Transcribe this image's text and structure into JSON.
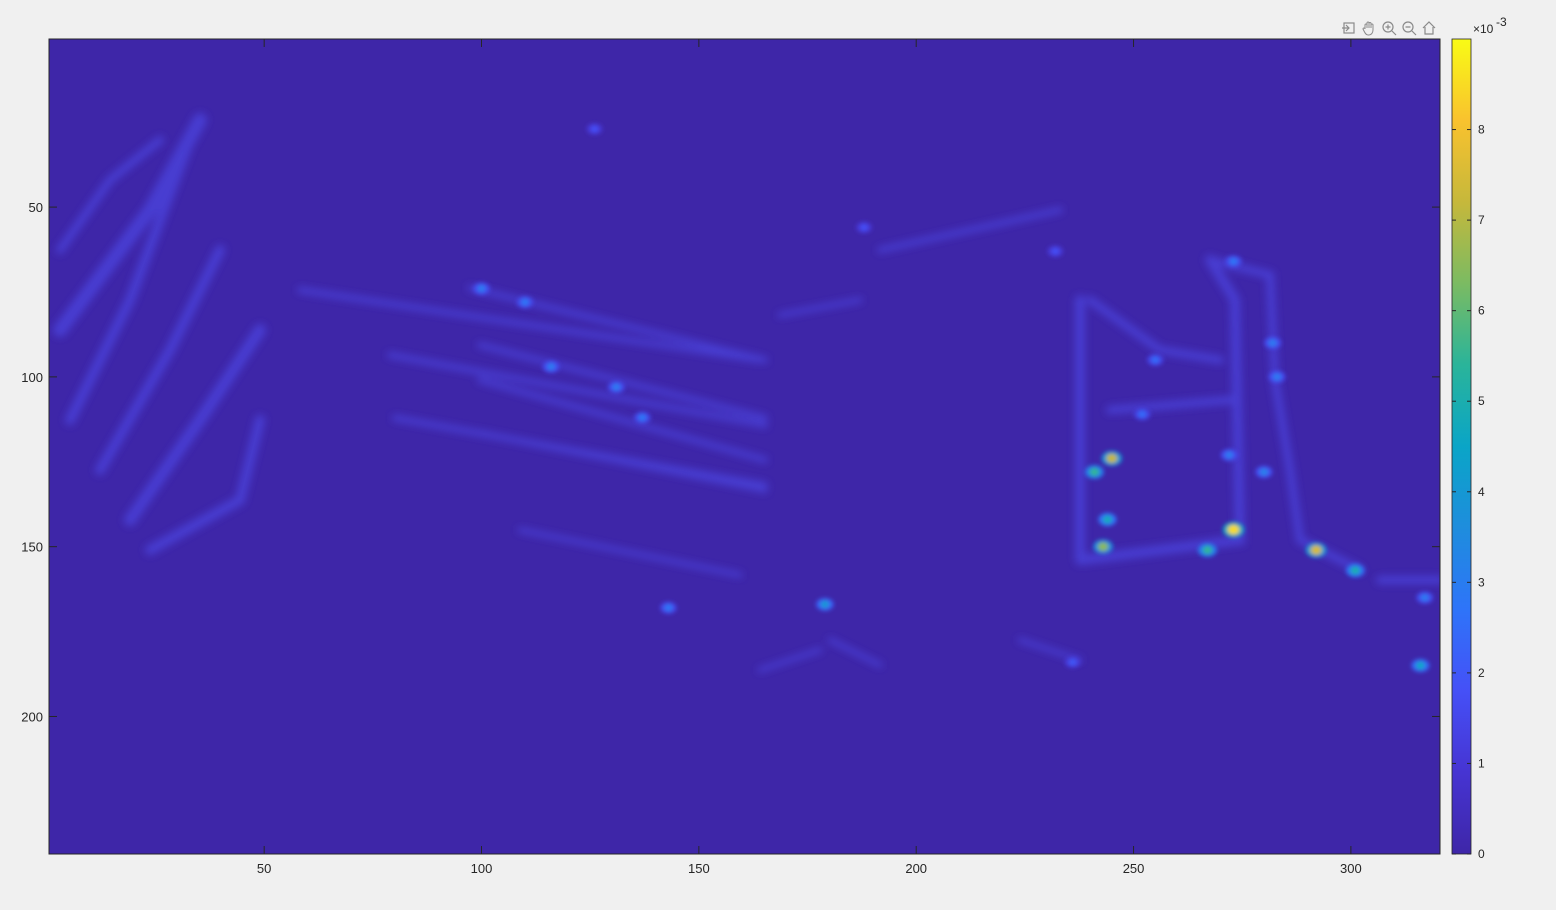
{
  "toolbar": {
    "items": [
      {
        "name": "export-icon"
      },
      {
        "name": "pan-hand-icon"
      },
      {
        "name": "zoom-in-icon"
      },
      {
        "name": "zoom-out-icon"
      },
      {
        "name": "home-icon"
      }
    ]
  },
  "colors": {
    "background": "#f0f0f0",
    "axes_bg": "#3e26a8",
    "axis_line": "#262626",
    "colormap": "parula"
  },
  "chart_data": {
    "type": "heatmap",
    "title": "",
    "xlabel": "",
    "ylabel": "",
    "xlim": [
      0.5,
      320.5
    ],
    "ylim": [
      0.5,
      240.5
    ],
    "y_reversed": true,
    "x_ticks": [
      50,
      100,
      150,
      200,
      250,
      300
    ],
    "y_ticks": [
      50,
      100,
      150,
      200
    ],
    "x_tick_labels": [
      "50",
      "100",
      "150",
      "200",
      "250",
      "300"
    ],
    "y_tick_labels": [
      "50",
      "100",
      "150",
      "200"
    ],
    "colorbar": {
      "range": [
        0,
        0.009
      ],
      "ticks": [
        0,
        1,
        2,
        3,
        4,
        5,
        6,
        7,
        8
      ],
      "tick_labels": [
        "0",
        "1",
        "2",
        "3",
        "4",
        "5",
        "6",
        "7",
        "8"
      ],
      "exponent_base": "×10",
      "exponent_power": "-3"
    },
    "hotspots": [
      {
        "x": 245,
        "y": 124,
        "v": 0.0072
      },
      {
        "x": 243,
        "y": 150,
        "v": 0.0065
      },
      {
        "x": 241,
        "y": 128,
        "v": 0.0055
      },
      {
        "x": 244,
        "y": 142,
        "v": 0.0048
      },
      {
        "x": 273,
        "y": 145,
        "v": 0.0085
      },
      {
        "x": 267,
        "y": 151,
        "v": 0.0055
      },
      {
        "x": 292,
        "y": 151,
        "v": 0.0075
      },
      {
        "x": 301,
        "y": 157,
        "v": 0.005
      },
      {
        "x": 316,
        "y": 185,
        "v": 0.0045
      },
      {
        "x": 317,
        "y": 165,
        "v": 0.003
      },
      {
        "x": 179,
        "y": 167,
        "v": 0.004
      },
      {
        "x": 143,
        "y": 168,
        "v": 0.0028
      },
      {
        "x": 273,
        "y": 66,
        "v": 0.0028
      },
      {
        "x": 282,
        "y": 90,
        "v": 0.003
      },
      {
        "x": 283,
        "y": 100,
        "v": 0.003
      },
      {
        "x": 280,
        "y": 128,
        "v": 0.0032
      },
      {
        "x": 272,
        "y": 123,
        "v": 0.003
      },
      {
        "x": 100,
        "y": 74,
        "v": 0.003
      },
      {
        "x": 110,
        "y": 78,
        "v": 0.0028
      },
      {
        "x": 116,
        "y": 97,
        "v": 0.003
      },
      {
        "x": 131,
        "y": 103,
        "v": 0.003
      },
      {
        "x": 137,
        "y": 112,
        "v": 0.0028
      },
      {
        "x": 126,
        "y": 27,
        "v": 0.0018
      },
      {
        "x": 255,
        "y": 95,
        "v": 0.0025
      },
      {
        "x": 252,
        "y": 111,
        "v": 0.0025
      },
      {
        "x": 236,
        "y": 184,
        "v": 0.002
      },
      {
        "x": 232,
        "y": 63,
        "v": 0.0018
      },
      {
        "x": 188,
        "y": 56,
        "v": 0.0018
      }
    ]
  }
}
